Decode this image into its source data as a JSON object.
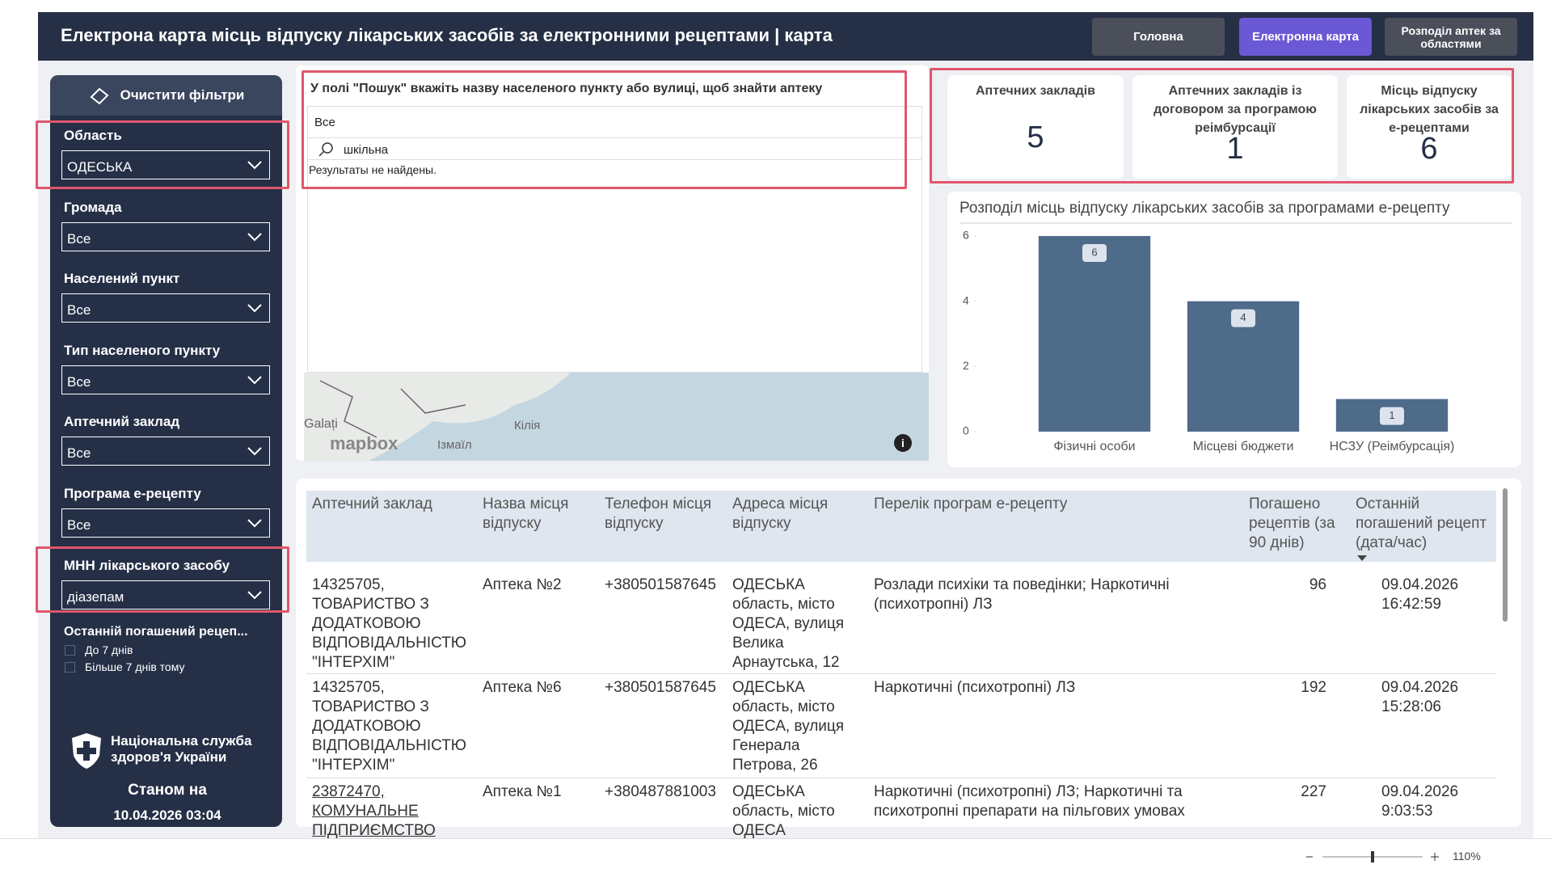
{
  "header": {
    "title": "Електрона карта місць відпуску лікарських засобів за електронними рецептами | карта",
    "nav": [
      "Головна",
      "Електронна карта",
      "Розподіл аптек за областями"
    ]
  },
  "sidebar": {
    "clear": "Очистити фільтри",
    "filters": [
      {
        "label": "Область",
        "value": "ОДЕСЬКА"
      },
      {
        "label": "Громада",
        "value": "Все"
      },
      {
        "label": "Населений пункт",
        "value": "Все"
      },
      {
        "label": "Тип населеного пункту",
        "value": "Все"
      },
      {
        "label": "Аптечний заклад",
        "value": "Все"
      },
      {
        "label": "Програма е-рецепту",
        "value": "Все"
      },
      {
        "label": "МНН лікарського засобу",
        "value": "діазепам"
      }
    ],
    "last_label": "Останній погашений рецеп...",
    "options": [
      "До 7 днів",
      "Більше 7 днів тому"
    ],
    "org": "Національна служба здоров'я України",
    "as_of_label": "Станом на",
    "as_of": "10.04.2026 03:04"
  },
  "search": {
    "hint": "У полі \"Пошук\" вкажіть назву населеного пункту або вулиці, щоб знайти аптеку",
    "selected": "Все",
    "query": "шкільна",
    "no_results": "Результаты не найдены.",
    "map_labels": [
      "Galați",
      "Ізмаїл",
      "Кілія",
      "mapbox"
    ]
  },
  "kpis": [
    {
      "label": "Аптечних закладів",
      "value": 5
    },
    {
      "label": "Аптечних закладів із договором за програмою реімбурсації",
      "value": 1
    },
    {
      "label": "Місць відпуску лікарських засобів за е-рецептами",
      "value": 6
    }
  ],
  "chart": {
    "type": "bar",
    "title": "Розподіл місць відпуску лікарських засобів за програмами е-рецепту",
    "categories": [
      "Фізичні особи",
      "Місцеві бюджети",
      "НСЗУ (Реімбурсація)"
    ],
    "values": [
      6,
      4,
      1
    ],
    "color": "#4f6b8a",
    "ylim": [
      0,
      6
    ],
    "yticks": [
      0,
      2,
      4,
      6
    ]
  },
  "table": {
    "columns": [
      "Аптечний заклад",
      "Назва місця відпуску",
      "Телефон місця відпуску",
      "Адреса місця відпуску",
      "Перелік програм е-рецепту",
      "Погашено рецептів (за 90 днів)",
      "Останній погашений рецепт (дата/час)"
    ],
    "rows": [
      [
        "14325705, ТОВАРИСТВО З ДОДАТКОВОЮ ВІДПОВІДАЛЬНІСТЮ \"ІНТЕРХІМ\"",
        "Аптека №2",
        "+380501587645",
        "ОДЕСЬКА область, місто ОДЕСА, вулиця Велика Арнаутська, 12",
        "Розлади психіки та поведінки; Наркотичні (психотропні) ЛЗ",
        "96",
        "09.04.2026 16:42:59"
      ],
      [
        "14325705, ТОВАРИСТВО З ДОДАТКОВОЮ ВІДПОВІДАЛЬНІСТЮ \"ІНТЕРХІМ\"",
        "Аптека №6",
        "+380501587645",
        "ОДЕСЬКА область, місто ОДЕСА, вулиця Генерала Петрова, 26",
        "Наркотичні (психотропні) ЛЗ",
        "192",
        "09.04.2026 15:28:06"
      ],
      [
        "23872470, КОМУНАЛЬНЕ ПІДПРИЄМСТВО",
        "Аптека №1",
        "+380487881003",
        "ОДЕСЬКА область, місто ОДЕСА",
        "Наркотичні (психотропні) ЛЗ; Наркотичні та психотропні препарати на пільгових умовах",
        "227",
        "09.04.2026 9:03:53"
      ]
    ]
  },
  "footer": {
    "zoom": "110%"
  }
}
